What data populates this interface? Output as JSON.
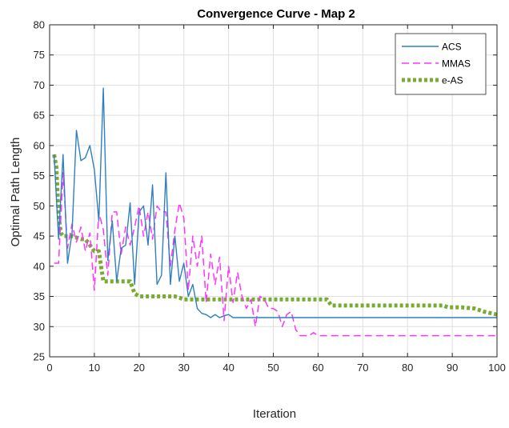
{
  "chart_data": {
    "type": "line",
    "title": "Convergence Curve - Map 2",
    "xlabel": "Iteration",
    "ylabel": "Optimal Path Length",
    "xlim": [
      0,
      100
    ],
    "ylim": [
      25,
      80
    ],
    "xticks": [
      0,
      10,
      20,
      30,
      40,
      50,
      60,
      70,
      80,
      90,
      100
    ],
    "yticks": [
      25,
      30,
      35,
      40,
      45,
      50,
      55,
      60,
      65,
      70,
      75,
      80
    ],
    "grid": true,
    "legend_position": "top-right",
    "series": [
      {
        "name": "ACS",
        "color": "#2f7fc1",
        "style": "solid",
        "x": [
          1,
          2,
          3,
          4,
          5,
          6,
          7,
          8,
          9,
          10,
          11,
          12,
          13,
          14,
          15,
          16,
          17,
          18,
          19,
          20,
          21,
          22,
          23,
          24,
          25,
          26,
          27,
          28,
          29,
          30,
          31,
          32,
          33,
          34,
          35,
          36,
          37,
          38,
          39,
          40,
          41,
          42,
          43,
          44,
          45,
          46,
          47,
          48,
          49,
          50,
          55,
          60,
          65,
          70,
          75,
          80,
          85,
          90,
          95,
          100
        ],
        "y": [
          58.5,
          44.5,
          58.5,
          40.5,
          45.5,
          62.5,
          57.5,
          58,
          60,
          56,
          47.5,
          69.5,
          41,
          47.5,
          37.5,
          43,
          43.5,
          50.5,
          37,
          49,
          50,
          43.5,
          53.5,
          37,
          38.5,
          55.5,
          37,
          45,
          37.5,
          40.5,
          35,
          37,
          33,
          32.2,
          32,
          31.5,
          32,
          31.5,
          31.8,
          32,
          31.5,
          31.5,
          31.5,
          31.5,
          31.5,
          31.5,
          31.5,
          31.5,
          31.5,
          31.5,
          31.5,
          31.5,
          31.5,
          31.5,
          31.5,
          31.5,
          31.5,
          31.5,
          31.5,
          31.5
        ]
      },
      {
        "name": "MMAS",
        "color": "#ff33ff",
        "style": "dashed",
        "x": [
          1,
          2,
          3,
          4,
          5,
          6,
          7,
          8,
          9,
          10,
          11,
          12,
          13,
          14,
          15,
          16,
          17,
          18,
          19,
          20,
          21,
          22,
          23,
          24,
          25,
          26,
          27,
          28,
          29,
          30,
          31,
          32,
          33,
          34,
          35,
          36,
          37,
          38,
          39,
          40,
          41,
          42,
          43,
          44,
          45,
          46,
          47,
          48,
          49,
          50,
          51,
          52,
          53,
          54,
          55,
          56,
          57,
          58,
          59,
          60,
          61,
          65,
          70,
          80,
          90,
          100
        ],
        "y": [
          40.5,
          40.5,
          55.5,
          43,
          47,
          44,
          46.5,
          42.5,
          45.5,
          36,
          49,
          46,
          38.5,
          49,
          49,
          42,
          46.5,
          43.5,
          46.5,
          50,
          45,
          49,
          44.5,
          50,
          49,
          49,
          40,
          46,
          50.5,
          48,
          36,
          45,
          40,
          45,
          34,
          42,
          37,
          41.5,
          31,
          40,
          34,
          39,
          35,
          33,
          34.5,
          30,
          35,
          34.5,
          33,
          33,
          32.5,
          30,
          32,
          32.5,
          29.5,
          28.5,
          28.5,
          28.5,
          29,
          28.5,
          28.5,
          28.5,
          28.5,
          28.5,
          28.5,
          28.5
        ]
      },
      {
        "name": "e-AS",
        "color": "#77ac30",
        "style": "dotted",
        "x": [
          1,
          1.5,
          2,
          2.5,
          3,
          4,
          5,
          7,
          8,
          9,
          10,
          11,
          11.5,
          12,
          14,
          16,
          18,
          19,
          20,
          22,
          24,
          26,
          28,
          29,
          30,
          32,
          34,
          36,
          38,
          40,
          45,
          50,
          55,
          60,
          62,
          63,
          65,
          70,
          80,
          88,
          89,
          92,
          95,
          97,
          100
        ],
        "y": [
          58.5,
          56.5,
          48.5,
          45.5,
          45,
          45,
          45,
          44.5,
          44.5,
          43.5,
          42.5,
          42.5,
          40,
          37.5,
          37.5,
          37.5,
          37.5,
          35.5,
          35,
          35,
          35,
          35,
          35,
          34.8,
          34.5,
          34.5,
          34.5,
          34.5,
          34.5,
          34.5,
          34.5,
          34.5,
          34.5,
          34.5,
          34.5,
          33.5,
          33.5,
          33.5,
          33.5,
          33.5,
          33.2,
          33.2,
          33,
          32.5,
          32
        ]
      }
    ]
  }
}
